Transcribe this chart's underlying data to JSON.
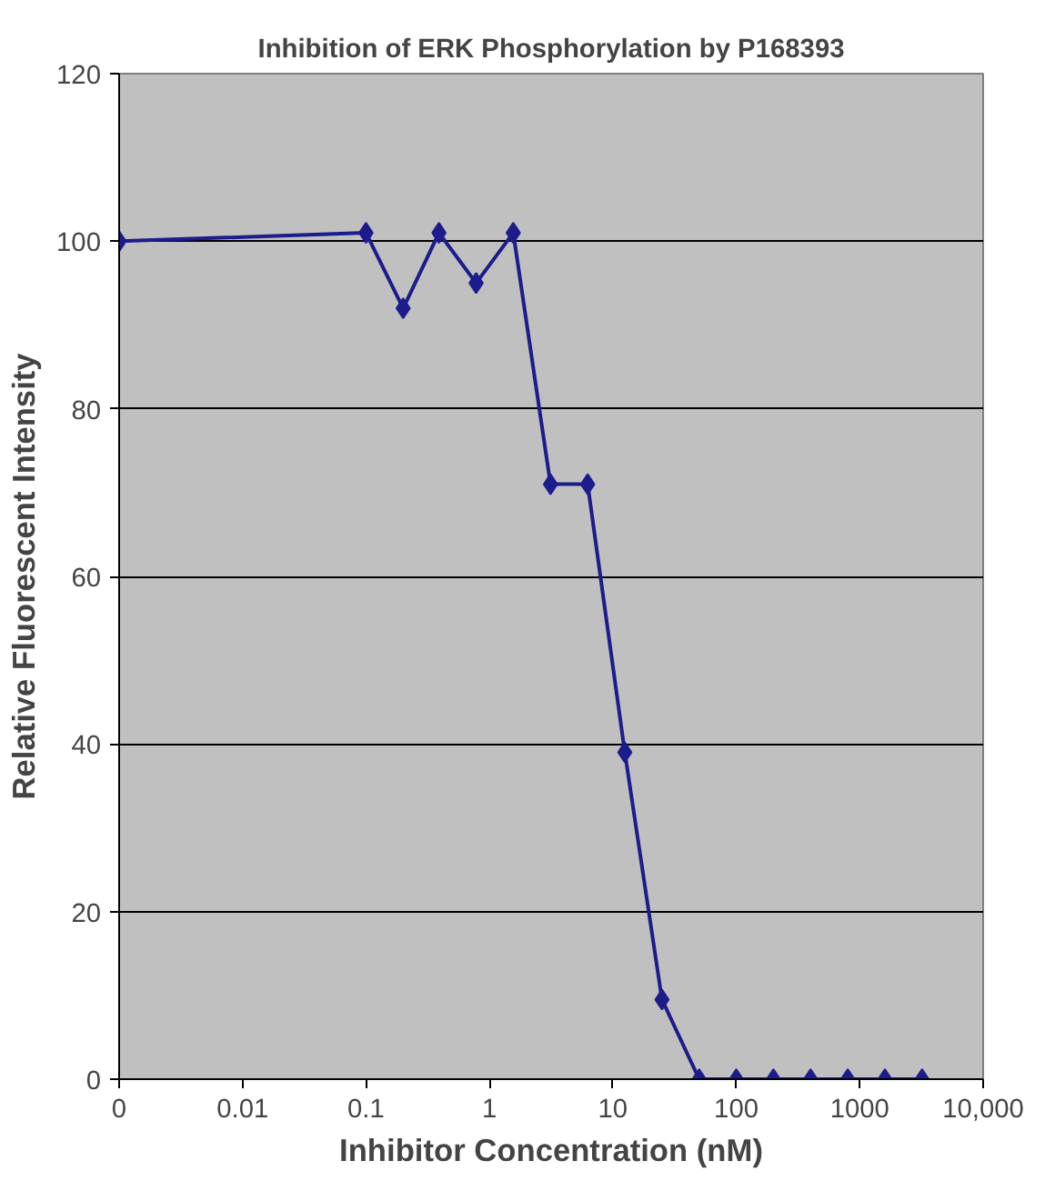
{
  "chart_data": {
    "type": "line",
    "title": "Inhibition of ERK Phosphorylation by P168393",
    "xlabel": "Inhibitor Concentration (nM)",
    "ylabel": "Relative Fluorescent Intensity",
    "x": [
      0.001,
      0.1,
      0.2,
      0.39,
      0.78,
      1.56,
      3.125,
      6.25,
      12.5,
      25,
      50,
      100,
      200,
      400,
      800,
      1600,
      3200
    ],
    "series": [
      {
        "color": "#1c1c8c",
        "values": [
          100,
          101,
          92,
          101,
          95,
          101,
          71,
          71,
          39,
          9.5,
          0,
          0,
          0,
          0,
          0,
          0,
          0
        ]
      }
    ],
    "log": "x",
    "xlim": [
      0.001,
      10000
    ],
    "xticks": [
      {
        "value": 0.001,
        "label": "0"
      },
      0.01,
      0.1,
      1,
      10,
      100,
      1000,
      {
        "value": 10000,
        "label": "10,000"
      }
    ],
    "ylim": [
      0,
      120
    ],
    "yticks": [
      0,
      20,
      40,
      60,
      80,
      100,
      120
    ],
    "grid": "y",
    "marker": "diamond",
    "line_style": "solid"
  }
}
